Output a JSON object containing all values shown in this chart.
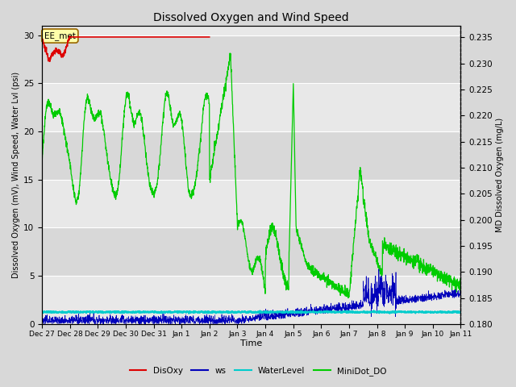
{
  "title": "Dissolved Oxygen and Wind Speed",
  "xlabel": "Time",
  "ylabel_left": "Dissolved Oxygen (mV), Wind Speed, Water Lvl (psi)",
  "ylabel_right": "MD Dissolved Oxygen (mg/L)",
  "annotation_text": "EE_met",
  "ylim_left": [
    0,
    31
  ],
  "ylim_right": [
    0.18,
    0.2373
  ],
  "yticks_left": [
    0,
    5,
    10,
    15,
    20,
    25,
    30
  ],
  "yticks_right": [
    0.18,
    0.185,
    0.19,
    0.195,
    0.2,
    0.205,
    0.21,
    0.215,
    0.22,
    0.225,
    0.23,
    0.235
  ],
  "xtick_labels": [
    "Dec 27",
    "Dec 28",
    "Dec 29",
    "Dec 30",
    "Dec 31",
    "Jan 1",
    "Jan 2",
    "Jan 3",
    "Jan 4",
    "Jan 5",
    "Jan 6",
    "Jan 7",
    "Jan 8",
    "Jan 9",
    "Jan 10",
    "Jan 11"
  ],
  "background_color": "#d8d8d8",
  "plot_bg_bands": [
    "#e8e8e8",
    "#d8d8d8"
  ],
  "grid_color": "#ffffff",
  "colors": {
    "DisOxy": "#dd0000",
    "ws": "#0000bb",
    "WaterLevel": "#00cccc",
    "MiniDot_DO": "#00cc00"
  },
  "legend_labels": [
    "DisOxy",
    "ws",
    "WaterLevel",
    "MiniDot_DO"
  ]
}
